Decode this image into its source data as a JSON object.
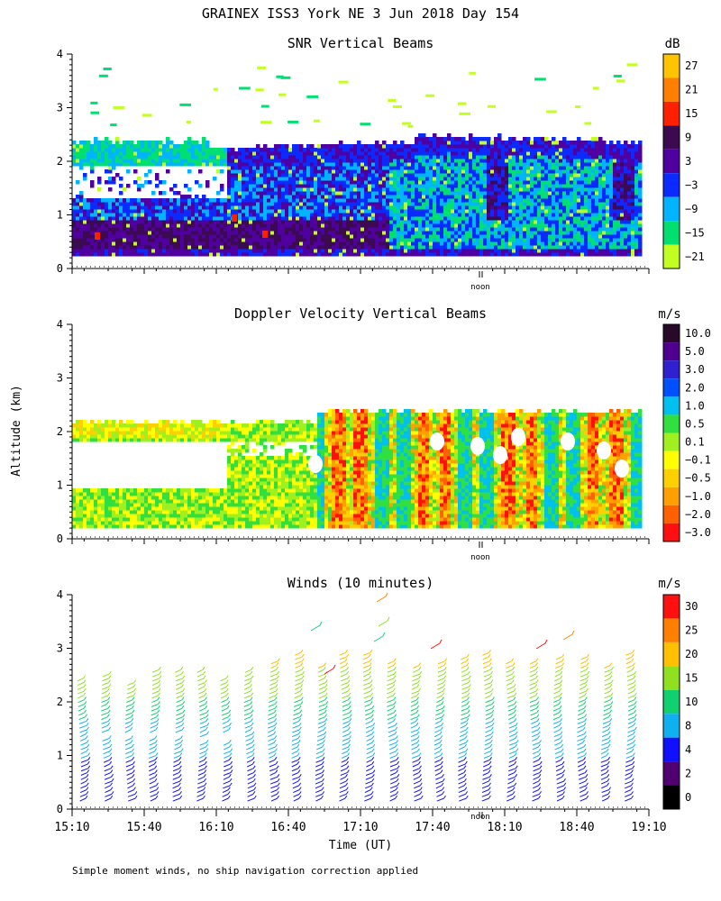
{
  "figure": {
    "title": "GRAINEX ISS3 York NE   3 Jun 2018 Day 154",
    "y_axis_label": "Altitude (km)",
    "x_axis_label": "Time (UT)",
    "footnote": "Simple moment winds, no ship navigation correction applied",
    "noon_label": "noon"
  },
  "chart_data": [
    {
      "type": "heatmap",
      "title": "SNR Vertical Beams",
      "unit": "dB",
      "ylim": [
        0,
        4
      ],
      "yticks": [
        "0",
        "1",
        "2",
        "3",
        "4"
      ],
      "colorbar": {
        "labels": [
          "27",
          "21",
          "15",
          "9",
          "3",
          "−3",
          "−9",
          "−15",
          "−21"
        ],
        "colors": [
          "#ffc400",
          "#ff8000",
          "#ff2000",
          "#3c0a50",
          "#5000a0",
          "#0a2aff",
          "#00b4ff",
          "#00e070",
          "#c0ff20"
        ]
      }
    },
    {
      "type": "heatmap",
      "title": "Doppler Velocity Vertical Beams",
      "unit": "m/s",
      "ylim": [
        0,
        4
      ],
      "yticks": [
        "0",
        "1",
        "2",
        "3",
        "4"
      ],
      "colorbar": {
        "labels": [
          "10.0",
          "5.0",
          "3.0",
          "2.0",
          "1.0",
          "0.5",
          "0.1",
          "−0.1",
          "−0.5",
          "−1.0",
          "−2.0",
          "−3.0"
        ],
        "colors": [
          "#280a28",
          "#500090",
          "#3020d0",
          "#0050ff",
          "#00c0f0",
          "#30e040",
          "#a0f020",
          "#ffff00",
          "#ffd000",
          "#ffa000",
          "#ff6000",
          "#ff1010"
        ]
      }
    },
    {
      "type": "scatter",
      "title": "Winds (10 minutes)",
      "unit": "m/s",
      "ylim": [
        0,
        4
      ],
      "yticks": [
        "0",
        "1",
        "2",
        "3",
        "4"
      ],
      "x_ticks": [
        "15:10",
        "15:40",
        "16:10",
        "16:40",
        "17:10",
        "17:40",
        "18:10",
        "18:40",
        "19:10"
      ],
      "colorbar": {
        "labels": [
          "30",
          "25",
          "20",
          "15",
          "10",
          "8",
          "4",
          "2",
          "0"
        ],
        "colors": [
          "#ff1010",
          "#ff8000",
          "#ffc000",
          "#90e020",
          "#10d070",
          "#10b0f0",
          "#1010ff",
          "#500070",
          "#000000"
        ]
      }
    }
  ]
}
